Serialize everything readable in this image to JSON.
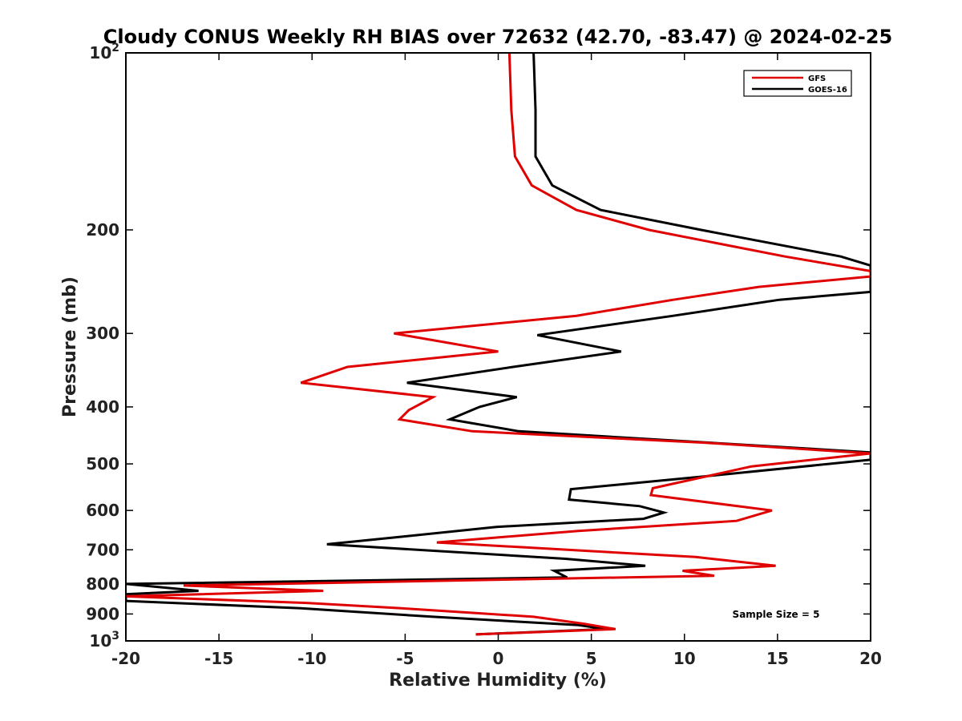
{
  "chart_data": {
    "type": "line",
    "title": "Cloudy CONUS Weekly RH BIAS over 72632 (42.70, -83.47) @ 2024-02-25",
    "xlabel": "Relative Humidity (%)",
    "ylabel": "Pressure (mb)",
    "xlim": [
      -20,
      20
    ],
    "ylim": [
      100,
      1000
    ],
    "y_scale": "log",
    "y_reversed": true,
    "grid": false,
    "legend_position": "top-right",
    "x_ticks": [
      -20,
      -15,
      -10,
      -5,
      0,
      5,
      10,
      15,
      20
    ],
    "x_tick_labels": [
      "-20",
      "-15",
      "-10",
      "-5",
      "0",
      "5",
      "10",
      "15",
      "20"
    ],
    "y_ticks": [
      100,
      200,
      300,
      400,
      500,
      600,
      700,
      800,
      900,
      1000
    ],
    "y_tick_labels": [
      {
        "base": "10",
        "exp": "2"
      },
      {
        "base": "200",
        "exp": ""
      },
      {
        "base": "300",
        "exp": ""
      },
      {
        "base": "400",
        "exp": ""
      },
      {
        "base": "500",
        "exp": ""
      },
      {
        "base": "600",
        "exp": ""
      },
      {
        "base": "700",
        "exp": ""
      },
      {
        "base": "800",
        "exp": ""
      },
      {
        "base": "900",
        "exp": ""
      },
      {
        "base": "10",
        "exp": "3"
      }
    ],
    "annotation": "Sample Size = 5",
    "series": [
      {
        "name": "GFS",
        "color": "#e00000",
        "points": [
          [
            0.6,
            100
          ],
          [
            0.7,
            125
          ],
          [
            0.9,
            150
          ],
          [
            1.8,
            168
          ],
          [
            4.2,
            185
          ],
          [
            8.1,
            200
          ],
          [
            15.4,
            222
          ],
          [
            20.0,
            235
          ],
          [
            20.0,
            240
          ],
          [
            14.0,
            250
          ],
          [
            9.4,
            263
          ],
          [
            4.2,
            280
          ],
          [
            -5.6,
            300
          ],
          [
            0.0,
            322
          ],
          [
            -8.1,
            342
          ],
          [
            -10.6,
            364
          ],
          [
            -3.5,
            385
          ],
          [
            -4.8,
            405
          ],
          [
            -5.3,
            420
          ],
          [
            -1.4,
            440
          ],
          [
            11.0,
            460
          ],
          [
            20.0,
            480
          ],
          [
            13.6,
            505
          ],
          [
            8.3,
            550
          ],
          [
            8.2,
            565
          ],
          [
            14.7,
            600
          ],
          [
            12.8,
            625
          ],
          [
            4.3,
            650
          ],
          [
            -3.3,
            680
          ],
          [
            10.6,
            720
          ],
          [
            14.9,
            745
          ],
          [
            9.9,
            760
          ],
          [
            11.6,
            775
          ],
          [
            -16.9,
            805
          ],
          [
            -9.4,
            822
          ],
          [
            -20.0,
            840
          ],
          [
            -10.2,
            862
          ],
          [
            -5.2,
            880
          ],
          [
            1.9,
            910
          ],
          [
            4.6,
            935
          ],
          [
            6.3,
            955
          ],
          [
            -1.2,
            975
          ]
        ]
      },
      {
        "name": "GOES-16",
        "color": "#000000",
        "points": [
          [
            1.9,
            100
          ],
          [
            2.0,
            125
          ],
          [
            2.0,
            150
          ],
          [
            2.9,
            168
          ],
          [
            5.5,
            185
          ],
          [
            10.9,
            200
          ],
          [
            18.4,
            222
          ],
          [
            20.0,
            230
          ],
          [
            20.0,
            255
          ],
          [
            15.1,
            263
          ],
          [
            9.4,
            280
          ],
          [
            2.1,
            302
          ],
          [
            6.6,
            322
          ],
          [
            0.8,
            342
          ],
          [
            -4.9,
            364
          ],
          [
            1.0,
            385
          ],
          [
            -1.0,
            400
          ],
          [
            -2.6,
            420
          ],
          [
            1.1,
            440
          ],
          [
            20.0,
            478
          ],
          [
            20.0,
            492
          ],
          [
            11.1,
            525
          ],
          [
            3.9,
            552
          ],
          [
            3.8,
            575
          ],
          [
            7.6,
            590
          ],
          [
            8.9,
            605
          ],
          [
            7.8,
            620
          ],
          [
            -0.1,
            640
          ],
          [
            -5.2,
            665
          ],
          [
            -9.2,
            685
          ],
          [
            3.6,
            725
          ],
          [
            7.9,
            745
          ],
          [
            3.0,
            760
          ],
          [
            3.7,
            780
          ],
          [
            -20.0,
            800
          ],
          [
            -16.1,
            822
          ],
          [
            -20.0,
            833
          ],
          [
            -20.0,
            855
          ],
          [
            -10.6,
            880
          ],
          [
            -3.5,
            910
          ],
          [
            4.3,
            940
          ],
          [
            5.8,
            955
          ],
          [
            -1.2,
            975
          ]
        ]
      }
    ]
  }
}
